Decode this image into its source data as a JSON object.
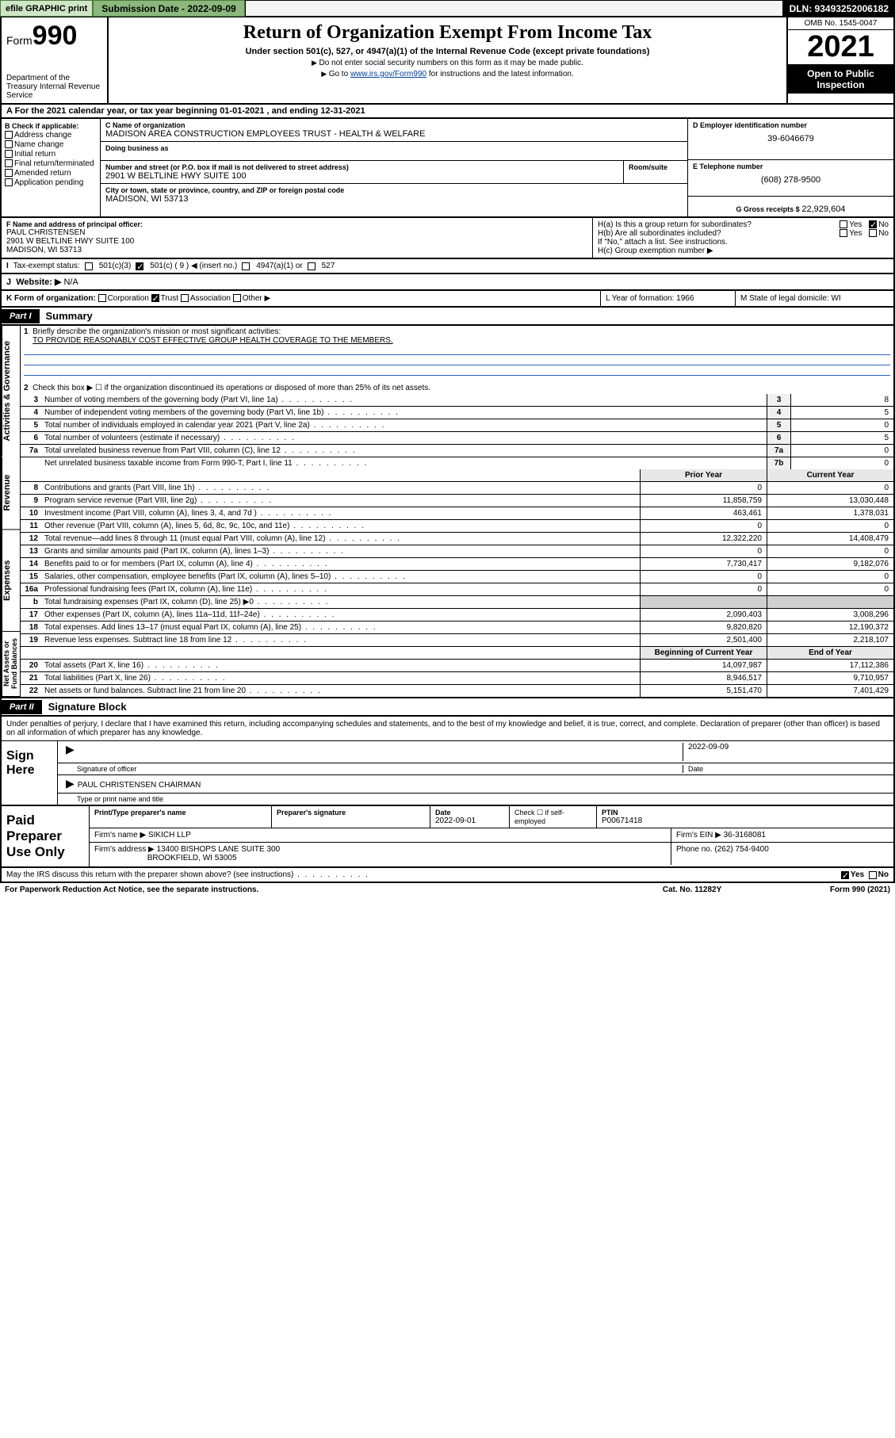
{
  "topbar": {
    "efile": "efile GRAPHIC print",
    "submission_label": "Submission Date - 2022-09-09",
    "dln": "DLN: 93493252006182"
  },
  "header": {
    "form_label": "Form",
    "form_number": "990",
    "dept": "Department of the Treasury Internal Revenue Service",
    "title": "Return of Organization Exempt From Income Tax",
    "subtitle": "Under section 501(c), 527, or 4947(a)(1) of the Internal Revenue Code (except private foundations)",
    "note1": "Do not enter social security numbers on this form as it may be made public.",
    "note2_a": "Go to ",
    "note2_link": "www.irs.gov/Form990",
    "note2_b": " for instructions and the latest information.",
    "omb": "OMB No. 1545-0047",
    "year": "2021",
    "open": "Open to Public Inspection"
  },
  "row_a": "A For the 2021 calendar year, or tax year beginning 01-01-2021   , and ending 12-31-2021",
  "section_b": {
    "check_label": "B Check if applicable:",
    "opts": [
      "Address change",
      "Name change",
      "Initial return",
      "Final return/terminated",
      "Amended return",
      "Application pending"
    ],
    "c_label": "C Name of organization",
    "c_name": "MADISON AREA CONSTRUCTION EMPLOYEES TRUST - HEALTH & WELFARE",
    "dba_label": "Doing business as",
    "street_label": "Number and street (or P.O. box if mail is not delivered to street address)",
    "street": "2901 W BELTLINE HWY SUITE 100",
    "room_label": "Room/suite",
    "city_label": "City or town, state or province, country, and ZIP or foreign postal code",
    "city": "MADISON, WI  53713",
    "d_label": "D Employer identification number",
    "d_val": "39-6046679",
    "e_label": "E Telephone number",
    "e_val": "(608) 278-9500",
    "g_label": "G Gross receipts $",
    "g_val": "22,929,604"
  },
  "section_f": {
    "f_label": "F Name and address of principal officer:",
    "f_name": "PAUL CHRISTENSEN",
    "f_addr1": "2901 W BELTLINE HWY SUITE 100",
    "f_addr2": "MADISON, WI  53713",
    "ha": "H(a)  Is this a group return for subordinates?",
    "hb": "H(b)  Are all subordinates included?",
    "hnote": "If \"No,\" attach a list. See instructions.",
    "hc": "H(c)  Group exemption number ▶",
    "yes": "Yes",
    "no": "No"
  },
  "row_i": {
    "label": "Tax-exempt status:",
    "o1": "501(c)(3)",
    "o2": "501(c) ( 9 ) ◀ (insert no.)",
    "o3": "4947(a)(1) or",
    "o4": "527"
  },
  "row_j": {
    "label": "Website: ▶",
    "val": "N/A"
  },
  "row_k": {
    "left": "K Form of organization:",
    "opts": [
      "Corporation",
      "Trust",
      "Association",
      "Other ▶"
    ],
    "l": "L Year of formation: 1966",
    "m": "M State of legal domicile: WI"
  },
  "part1": {
    "tag": "Part I",
    "title": "Summary"
  },
  "summary": {
    "gov_label": "Activities & Governance",
    "rev_label": "Revenue",
    "exp_label": "Expenses",
    "net_label": "Net Assets or Fund Balances",
    "line1a": "Briefly describe the organization's mission or most significant activities:",
    "line1b": "TO PROVIDE REASONABLY COST EFFECTIVE GROUP HEALTH COVERAGE TO THE MEMBERS.",
    "line2": "Check this box ▶ ☐  if the organization discontinued its operations or disposed of more than 25% of its net assets.",
    "rows_gov": [
      {
        "n": "3",
        "t": "Number of voting members of the governing body (Part VI, line 1a)",
        "bx": "3",
        "v": "8"
      },
      {
        "n": "4",
        "t": "Number of independent voting members of the governing body (Part VI, line 1b)",
        "bx": "4",
        "v": "5"
      },
      {
        "n": "5",
        "t": "Total number of individuals employed in calendar year 2021 (Part V, line 2a)",
        "bx": "5",
        "v": "0"
      },
      {
        "n": "6",
        "t": "Total number of volunteers (estimate if necessary)",
        "bx": "6",
        "v": "5"
      },
      {
        "n": "7a",
        "t": "Total unrelated business revenue from Part VIII, column (C), line 12",
        "bx": "7a",
        "v": "0"
      },
      {
        "n": "",
        "t": "Net unrelated business taxable income from Form 990-T, Part I, line 11",
        "bx": "7b",
        "v": "0"
      }
    ],
    "hdr_prior": "Prior Year",
    "hdr_curr": "Current Year",
    "rows_rev": [
      {
        "n": "8",
        "t": "Contributions and grants (Part VIII, line 1h)",
        "c1": "0",
        "c2": "0"
      },
      {
        "n": "9",
        "t": "Program service revenue (Part VIII, line 2g)",
        "c1": "11,858,759",
        "c2": "13,030,448"
      },
      {
        "n": "10",
        "t": "Investment income (Part VIII, column (A), lines 3, 4, and 7d )",
        "c1": "463,461",
        "c2": "1,378,031"
      },
      {
        "n": "11",
        "t": "Other revenue (Part VIII, column (A), lines 5, 6d, 8c, 9c, 10c, and 11e)",
        "c1": "0",
        "c2": "0"
      },
      {
        "n": "12",
        "t": "Total revenue—add lines 8 through 11 (must equal Part VIII, column (A), line 12)",
        "c1": "12,322,220",
        "c2": "14,408,479"
      }
    ],
    "rows_exp": [
      {
        "n": "13",
        "t": "Grants and similar amounts paid (Part IX, column (A), lines 1–3)",
        "c1": "0",
        "c2": "0"
      },
      {
        "n": "14",
        "t": "Benefits paid to or for members (Part IX, column (A), line 4)",
        "c1": "7,730,417",
        "c2": "9,182,076"
      },
      {
        "n": "15",
        "t": "Salaries, other compensation, employee benefits (Part IX, column (A), lines 5–10)",
        "c1": "0",
        "c2": "0"
      },
      {
        "n": "16a",
        "t": "Professional fundraising fees (Part IX, column (A), line 11e)",
        "c1": "0",
        "c2": "0"
      },
      {
        "n": "b",
        "t": "Total fundraising expenses (Part IX, column (D), line 25) ▶0",
        "c1": "",
        "c2": "",
        "shade": true
      },
      {
        "n": "17",
        "t": "Other expenses (Part IX, column (A), lines 11a–11d, 11f–24e)",
        "c1": "2,090,403",
        "c2": "3,008,296"
      },
      {
        "n": "18",
        "t": "Total expenses. Add lines 13–17 (must equal Part IX, column (A), line 25)",
        "c1": "9,820,820",
        "c2": "12,190,372"
      },
      {
        "n": "19",
        "t": "Revenue less expenses. Subtract line 18 from line 12",
        "c1": "2,501,400",
        "c2": "2,218,107"
      }
    ],
    "hdr_beg": "Beginning of Current Year",
    "hdr_end": "End of Year",
    "rows_net": [
      {
        "n": "20",
        "t": "Total assets (Part X, line 16)",
        "c1": "14,097,987",
        "c2": "17,112,386"
      },
      {
        "n": "21",
        "t": "Total liabilities (Part X, line 26)",
        "c1": "8,946,517",
        "c2": "9,710,957"
      },
      {
        "n": "22",
        "t": "Net assets or fund balances. Subtract line 21 from line 20",
        "c1": "5,151,470",
        "c2": "7,401,429"
      }
    ]
  },
  "part2": {
    "tag": "Part II",
    "title": "Signature Block"
  },
  "sig": {
    "pen": "Under penalties of perjury, I declare that I have examined this return, including accompanying schedules and statements, and to the best of my knowledge and belief, it is true, correct, and complete. Declaration of preparer (other than officer) is based on all information of which preparer has any knowledge.",
    "sign_here": "Sign Here",
    "sig_officer": "Signature of officer",
    "date": "2022-09-09",
    "date_label": "Date",
    "name": "PAUL CHRISTENSEN  CHAIRMAN",
    "name_label": "Type or print name and title"
  },
  "paid": {
    "label": "Paid Preparer Use Only",
    "h1": "Print/Type preparer's name",
    "h2": "Preparer's signature",
    "h3_label": "Date",
    "h3": "2022-09-01",
    "h4a": "Check ☐ if self-employed",
    "h5_label": "PTIN",
    "h5": "P00671418",
    "firm_label": "Firm's name    ▶",
    "firm": "SIKICH LLP",
    "ein_label": "Firm's EIN ▶",
    "ein": "36-3168081",
    "addr_label": "Firm's address ▶",
    "addr1": "13400 BISHOPS LANE SUITE 300",
    "addr2": "BROOKFIELD, WI  53005",
    "phone_label": "Phone no.",
    "phone": "(262) 754-9400"
  },
  "lastrow": {
    "q": "May the IRS discuss this return with the preparer shown above? (see instructions)",
    "yes": "Yes",
    "no": "No"
  },
  "footer": {
    "left": "For Paperwork Reduction Act Notice, see the separate instructions.",
    "mid": "Cat. No. 11282Y",
    "right": "Form 990 (2021)"
  }
}
